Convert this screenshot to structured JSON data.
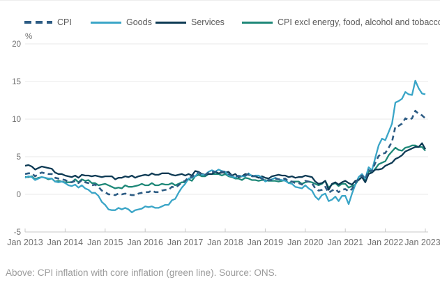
{
  "page": {
    "caption": "Above: CPI inflation with core inflation (green line). Source: ONS."
  },
  "chart_data": {
    "type": "line",
    "title": "",
    "ylabel": "%",
    "xlabel": "",
    "ylim": [
      -5,
      20
    ],
    "yticks": [
      20,
      15,
      10,
      5,
      0,
      -5
    ],
    "grid": "horizontal",
    "legend_position": "top",
    "x_unit": "monthly, Jan 2013 to Jan 2023",
    "x_tick_labels": [
      "Jan 2013",
      "Jan 2014",
      "Jan 2015",
      "Jan 2016",
      "Jan 2017",
      "Jan 2018",
      "Jan 2019",
      "Jan 2020",
      "Jan 2021",
      "Jan 2022",
      "Jan 2023"
    ],
    "axis_color": "#c8c8c8",
    "gridline_color": "#e9e9e9",
    "tick_label_color": "#6e6e6e",
    "draw_order": [
      3,
      2,
      1,
      0
    ],
    "series": [
      {
        "id": "cpi",
        "name": "CPI",
        "color": "#2d5c84",
        "line_style": "dashed",
        "values": [
          2.7,
          2.8,
          2.8,
          2.4,
          2.7,
          2.9,
          2.8,
          2.7,
          2.7,
          2.2,
          2.1,
          2.0,
          1.9,
          1.7,
          1.6,
          1.8,
          1.5,
          1.9,
          1.6,
          1.5,
          1.2,
          1.3,
          1.0,
          0.5,
          0.3,
          0.0,
          0.0,
          -0.1,
          0.1,
          0.0,
          0.1,
          0.0,
          -0.1,
          -0.1,
          0.1,
          0.2,
          0.3,
          0.3,
          0.5,
          0.3,
          0.3,
          0.5,
          0.6,
          0.6,
          1.0,
          0.9,
          1.2,
          1.6,
          1.8,
          2.3,
          2.3,
          2.7,
          2.9,
          2.6,
          2.6,
          2.9,
          3.0,
          3.0,
          3.1,
          3.0,
          3.0,
          2.7,
          2.5,
          2.4,
          2.4,
          2.4,
          2.5,
          2.7,
          2.4,
          2.4,
          2.3,
          2.1,
          1.8,
          1.9,
          1.9,
          2.1,
          2.0,
          2.0,
          2.1,
          1.7,
          1.7,
          1.5,
          1.5,
          1.3,
          1.8,
          1.7,
          1.5,
          0.8,
          0.5,
          0.6,
          1.0,
          0.2,
          0.5,
          0.7,
          0.3,
          0.6,
          0.7,
          0.4,
          0.7,
          1.5,
          2.1,
          2.5,
          2.0,
          3.2,
          3.1,
          4.2,
          5.1,
          5.4,
          5.5,
          6.2,
          7.0,
          9.0,
          9.1,
          9.4,
          10.1,
          9.9,
          10.1,
          11.1,
          10.7,
          10.5,
          10.1
        ]
      },
      {
        "id": "goods",
        "name": "Goods",
        "color": "#3aa5c7",
        "line_style": "solid",
        "values": [
          2.2,
          2.4,
          2.3,
          1.9,
          2.1,
          2.3,
          2.2,
          2.1,
          2.1,
          1.7,
          1.6,
          1.7,
          1.5,
          1.2,
          1.1,
          1.3,
          0.9,
          1.2,
          0.8,
          0.6,
          0.2,
          0.2,
          -0.2,
          -1.0,
          -1.4,
          -2.0,
          -2.1,
          -2.1,
          -1.8,
          -2.0,
          -1.8,
          -2.0,
          -2.4,
          -2.1,
          -2.0,
          -1.9,
          -1.6,
          -1.7,
          -1.6,
          -1.8,
          -1.8,
          -1.6,
          -1.4,
          -1.4,
          -0.8,
          -0.6,
          0.2,
          0.9,
          1.4,
          2.1,
          2.2,
          2.4,
          2.9,
          2.6,
          2.6,
          3.0,
          3.2,
          3.0,
          3.3,
          3.1,
          3.0,
          2.5,
          2.4,
          2.2,
          2.5,
          2.4,
          2.4,
          2.8,
          2.4,
          2.5,
          2.5,
          2.2,
          1.7,
          1.9,
          2.0,
          2.2,
          2.0,
          1.9,
          1.8,
          1.5,
          1.4,
          1.0,
          0.9,
          0.8,
          1.2,
          0.8,
          0.5,
          -0.3,
          -0.7,
          -0.1,
          0.1,
          -0.9,
          -0.7,
          -0.3,
          -0.9,
          -0.2,
          -0.2,
          -1.3,
          0.1,
          1.3,
          2.3,
          2.7,
          2.1,
          3.6,
          3.2,
          4.9,
          6.5,
          7.4,
          7.2,
          8.3,
          9.4,
          12.2,
          12.4,
          12.7,
          13.6,
          13.3,
          13.2,
          15.1,
          14.1,
          13.4,
          13.3
        ]
      },
      {
        "id": "services",
        "name": "Services",
        "color": "#0d3a54",
        "line_style": "solid",
        "values": [
          3.8,
          3.9,
          3.7,
          3.3,
          3.5,
          3.7,
          3.6,
          3.5,
          3.4,
          2.9,
          2.7,
          2.7,
          2.5,
          2.4,
          2.3,
          2.5,
          2.2,
          2.6,
          2.5,
          2.5,
          2.4,
          2.5,
          2.4,
          2.3,
          2.4,
          2.4,
          2.4,
          2.0,
          2.2,
          2.2,
          2.4,
          2.3,
          2.5,
          2.2,
          2.4,
          2.5,
          2.6,
          2.5,
          2.8,
          2.6,
          2.6,
          2.8,
          2.8,
          2.8,
          2.6,
          2.5,
          2.6,
          2.7,
          2.5,
          2.7,
          2.5,
          3.1,
          3.0,
          2.7,
          2.6,
          2.7,
          2.7,
          3.0,
          2.8,
          2.9,
          2.9,
          3.0,
          2.5,
          2.7,
          2.3,
          2.4,
          2.7,
          2.6,
          2.5,
          2.4,
          2.2,
          2.4,
          2.2,
          2.1,
          2.4,
          2.5,
          2.6,
          2.5,
          2.5,
          2.3,
          2.4,
          2.2,
          2.3,
          2.3,
          2.5,
          2.4,
          2.3,
          1.7,
          1.4,
          1.5,
          1.8,
          0.6,
          1.4,
          1.6,
          1.3,
          1.6,
          1.8,
          1.5,
          1.3,
          1.8,
          1.9,
          2.3,
          1.6,
          2.7,
          2.9,
          3.3,
          3.3,
          3.4,
          3.8,
          4.0,
          4.2,
          4.7,
          4.9,
          5.2,
          5.7,
          5.9,
          6.1,
          6.3,
          6.3,
          6.8,
          6.0
        ]
      },
      {
        "id": "core-cpi",
        "name": "CPI excl energy, food, alcohol and tobacco",
        "color": "#1e8878",
        "line_style": "solid",
        "values": [
          2.3,
          2.3,
          2.4,
          2.0,
          2.2,
          2.3,
          2.2,
          2.0,
          2.1,
          1.7,
          1.8,
          1.7,
          1.6,
          1.6,
          1.6,
          2.0,
          1.6,
          2.0,
          1.8,
          1.9,
          1.5,
          1.5,
          1.2,
          1.3,
          1.4,
          1.2,
          1.0,
          0.8,
          0.9,
          0.8,
          1.2,
          1.0,
          1.0,
          1.1,
          1.2,
          1.4,
          1.2,
          1.2,
          1.5,
          1.2,
          1.2,
          1.4,
          1.3,
          1.3,
          1.5,
          1.2,
          1.4,
          1.6,
          1.6,
          2.0,
          1.8,
          2.4,
          2.6,
          2.4,
          2.4,
          2.7,
          2.7,
          2.7,
          2.7,
          2.5,
          2.7,
          2.4,
          2.3,
          2.1,
          2.1,
          1.9,
          2.2,
          2.1,
          1.9,
          1.9,
          1.8,
          1.9,
          1.9,
          1.8,
          1.8,
          1.8,
          1.7,
          1.8,
          1.9,
          1.5,
          1.7,
          1.7,
          1.7,
          1.4,
          1.6,
          1.7,
          1.6,
          1.4,
          1.2,
          1.4,
          1.8,
          0.9,
          1.3,
          1.5,
          1.1,
          1.4,
          1.4,
          0.9,
          1.1,
          1.3,
          2.0,
          2.3,
          1.8,
          3.1,
          2.9,
          3.4,
          4.0,
          4.2,
          4.4,
          5.2,
          5.7,
          6.2,
          5.9,
          5.8,
          6.2,
          6.3,
          6.5,
          6.5,
          6.3,
          6.3,
          5.8
        ]
      }
    ]
  }
}
